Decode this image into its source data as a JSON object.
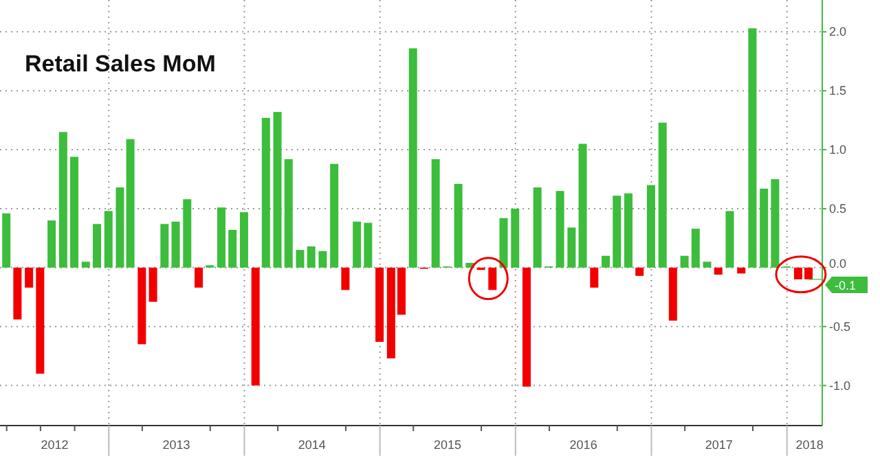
{
  "chart_data": {
    "type": "bar",
    "title": "Retail Sales MoM",
    "x": [
      "2012-03-31",
      "2012-04-30",
      "2012-05-31",
      "2012-06-30",
      "2012-07-31",
      "2012-08-31",
      "2012-09-30",
      "2012-10-31",
      "2012-11-30",
      "2012-12-31",
      "2013-01-31",
      "2013-02-28",
      "2013-03-31",
      "2013-04-30",
      "2013-05-31",
      "2013-06-30",
      "2013-07-31",
      "2013-08-31",
      "2013-09-30",
      "2013-10-31",
      "2013-11-30",
      "2013-12-31",
      "2014-01-31",
      "2014-02-28",
      "2014-03-31",
      "2014-04-30",
      "2014-05-31",
      "2014-06-30",
      "2014-07-31",
      "2014-08-31",
      "2014-09-30",
      "2014-10-31",
      "2014-11-30",
      "2014-12-31",
      "2015-01-31",
      "2015-02-28",
      "2015-03-31",
      "2015-04-30",
      "2015-05-31",
      "2015-06-30",
      "2015-07-31",
      "2015-08-31",
      "2015-09-30",
      "2015-10-31",
      "2015-11-30",
      "2015-12-31",
      "2016-01-31",
      "2016-02-29",
      "2016-03-31",
      "2016-04-30",
      "2016-05-31",
      "2016-06-30",
      "2016-07-31",
      "2016-08-31",
      "2016-09-30",
      "2016-10-31",
      "2016-11-30",
      "2016-12-31",
      "2017-01-31",
      "2017-02-28",
      "2017-03-31",
      "2017-04-30",
      "2017-05-31",
      "2017-06-30",
      "2017-07-31",
      "2017-08-31",
      "2017-09-30",
      "2017-10-31",
      "2017-11-30",
      "2017-12-31",
      "2018-01-31",
      "2018-02-28"
    ],
    "values": [
      0.46,
      -0.44,
      -0.17,
      -0.9,
      0.4,
      1.15,
      0.94,
      0.05,
      0.37,
      0.48,
      0.68,
      1.09,
      -0.65,
      -0.29,
      0.37,
      0.39,
      0.58,
      -0.17,
      0.02,
      0.51,
      0.32,
      0.47,
      -1.0,
      1.27,
      1.32,
      0.92,
      0.15,
      0.18,
      0.14,
      0.88,
      -0.19,
      0.39,
      0.38,
      -0.63,
      -0.77,
      -0.4,
      1.86,
      -0.01,
      0.92,
      0.01,
      0.71,
      0.04,
      -0.02,
      -0.19,
      0.42,
      0.5,
      -1.01,
      0.68,
      0.01,
      0.65,
      0.34,
      1.05,
      -0.17,
      0.1,
      0.61,
      0.63,
      -0.07,
      0.7,
      1.23,
      -0.45,
      0.1,
      0.33,
      0.05,
      -0.06,
      0.48,
      -0.05,
      2.03,
      0.67,
      0.75,
      0.01,
      -0.1,
      -0.1
    ],
    "colors": [
      "#3cbd3c",
      "#f20000",
      "#f20000",
      "#f20000",
      "#3cbd3c",
      "#3cbd3c",
      "#3cbd3c",
      "#3cbd3c",
      "#3cbd3c",
      "#3cbd3c",
      "#3cbd3c",
      "#3cbd3c",
      "#f20000",
      "#f20000",
      "#3cbd3c",
      "#3cbd3c",
      "#3cbd3c",
      "#f20000",
      "#3cbd3c",
      "#3cbd3c",
      "#3cbd3c",
      "#3cbd3c",
      "#f20000",
      "#3cbd3c",
      "#3cbd3c",
      "#3cbd3c",
      "#3cbd3c",
      "#3cbd3c",
      "#3cbd3c",
      "#3cbd3c",
      "#f20000",
      "#3cbd3c",
      "#3cbd3c",
      "#f20000",
      "#f20000",
      "#f20000",
      "#3cbd3c",
      "#f20000",
      "#3cbd3c",
      "#3cbd3c",
      "#3cbd3c",
      "#3cbd3c",
      "#f20000",
      "#f20000",
      "#3cbd3c",
      "#3cbd3c",
      "#f20000",
      "#3cbd3c",
      "#3cbd3c",
      "#3cbd3c",
      "#3cbd3c",
      "#3cbd3c",
      "#f20000",
      "#3cbd3c",
      "#3cbd3c",
      "#3cbd3c",
      "#f20000",
      "#3cbd3c",
      "#3cbd3c",
      "#f20000",
      "#3cbd3c",
      "#3cbd3c",
      "#3cbd3c",
      "#f20000",
      "#3cbd3c",
      "#f20000",
      "#3cbd3c",
      "#3cbd3c",
      "#3cbd3c",
      "#3cbd3c",
      "#f20000",
      "#f20000"
    ],
    "xlim": [
      "2012-03-14",
      "2018-04-06"
    ],
    "xticks": [
      {
        "value": "2012-04-01",
        "label": null
      },
      {
        "value": "2012-07-01",
        "label": null
      },
      {
        "value": "2012-08-08",
        "label": "2012"
      },
      {
        "value": "2012-10-01",
        "label": null
      },
      {
        "value": "2013-01-01",
        "label": null
      },
      {
        "value": "2013-04-01",
        "label": null
      },
      {
        "value": "2013-07-02",
        "label": "2013"
      },
      {
        "value": "2013-10-01",
        "label": null
      },
      {
        "value": "2014-01-01",
        "label": null
      },
      {
        "value": "2014-04-01",
        "label": null
      },
      {
        "value": "2014-07-02",
        "label": "2014"
      },
      {
        "value": "2014-10-01",
        "label": null
      },
      {
        "value": "2015-01-01",
        "label": null
      },
      {
        "value": "2015-04-01",
        "label": null
      },
      {
        "value": "2015-07-02",
        "label": "2015"
      },
      {
        "value": "2015-10-01",
        "label": null
      },
      {
        "value": "2016-01-01",
        "label": null
      },
      {
        "value": "2016-04-01",
        "label": null
      },
      {
        "value": "2016-07-02",
        "label": "2016"
      },
      {
        "value": "2016-10-01",
        "label": null
      },
      {
        "value": "2017-01-01",
        "label": null
      },
      {
        "value": "2017-04-01",
        "label": null
      },
      {
        "value": "2017-07-02",
        "label": "2017"
      },
      {
        "value": "2017-10-01",
        "label": null
      },
      {
        "value": "2018-01-01",
        "label": null
      },
      {
        "value": "2018-03-03",
        "label": "2018"
      }
    ],
    "ylim": [
      -1.34,
      2.27
    ],
    "yticks": [
      {
        "value": -1,
        "label": "-1.0"
      },
      {
        "value": -0.5,
        "label": "-0.5"
      },
      {
        "value": 0,
        "label": "0.0"
      },
      {
        "value": 0.5,
        "label": "0.5"
      },
      {
        "value": 1,
        "label": "1.0"
      },
      {
        "value": 1.5,
        "label": "1.5"
      },
      {
        "value": 2,
        "label": "2.0"
      }
    ],
    "grid": true,
    "annotations": [
      {
        "text": "-0.1",
        "x": "2018-02-28",
        "y": -0.1
      }
    ]
  }
}
